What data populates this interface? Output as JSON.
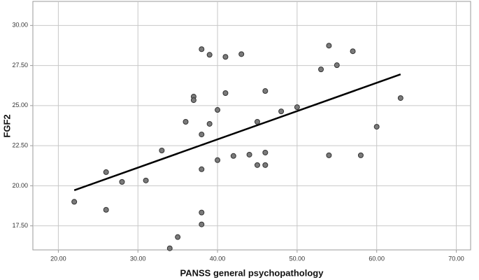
{
  "chart_data": {
    "type": "scatter",
    "x_label": "PANSS general psychopathology",
    "y_label": "FGF2",
    "xlim": [
      16.8,
      71.8
    ],
    "ylim": [
      16.0,
      31.5
    ],
    "xticks": [
      {
        "value": 20,
        "label": "20.00"
      },
      {
        "value": 30,
        "label": "30.00"
      },
      {
        "value": 40,
        "label": "40.00"
      },
      {
        "value": 50,
        "label": "50.00"
      },
      {
        "value": 60,
        "label": "60.00"
      },
      {
        "value": 70,
        "label": "70.00"
      }
    ],
    "yticks": [
      {
        "value": 17.5,
        "label": "17.50"
      },
      {
        "value": 20,
        "label": "20.00"
      },
      {
        "value": 22.5,
        "label": "22.50"
      },
      {
        "value": 25,
        "label": "25.00"
      },
      {
        "value": 27.5,
        "label": "27.50"
      },
      {
        "value": 30,
        "label": "30.00"
      }
    ],
    "grid": true,
    "color": "#7a7a7a",
    "x": [
      22,
      26,
      26,
      28,
      31,
      33,
      35,
      34,
      36,
      37,
      37,
      38,
      38,
      38,
      38,
      38,
      39,
      39,
      40,
      40,
      41,
      41,
      42,
      43,
      44,
      45,
      45,
      46,
      46,
      46,
      48,
      50,
      53,
      54,
      54,
      55,
      57,
      58,
      60,
      63
    ],
    "y": [
      19.0,
      20.85,
      18.5,
      20.24,
      20.33,
      22.2,
      16.8,
      16.1,
      23.99,
      25.56,
      25.34,
      28.52,
      23.2,
      21.03,
      18.33,
      17.59,
      28.17,
      23.86,
      24.73,
      21.6,
      28.04,
      25.78,
      21.86,
      28.21,
      21.94,
      23.99,
      21.29,
      25.91,
      22.07,
      21.29,
      24.64,
      24.9,
      27.26,
      28.74,
      21.9,
      27.52,
      28.39,
      21.9,
      23.68,
      25.47
    ],
    "fit_line": {
      "x": [
        22,
        63
      ],
      "y": [
        19.72,
        26.95
      ],
      "color": "#000000"
    }
  }
}
